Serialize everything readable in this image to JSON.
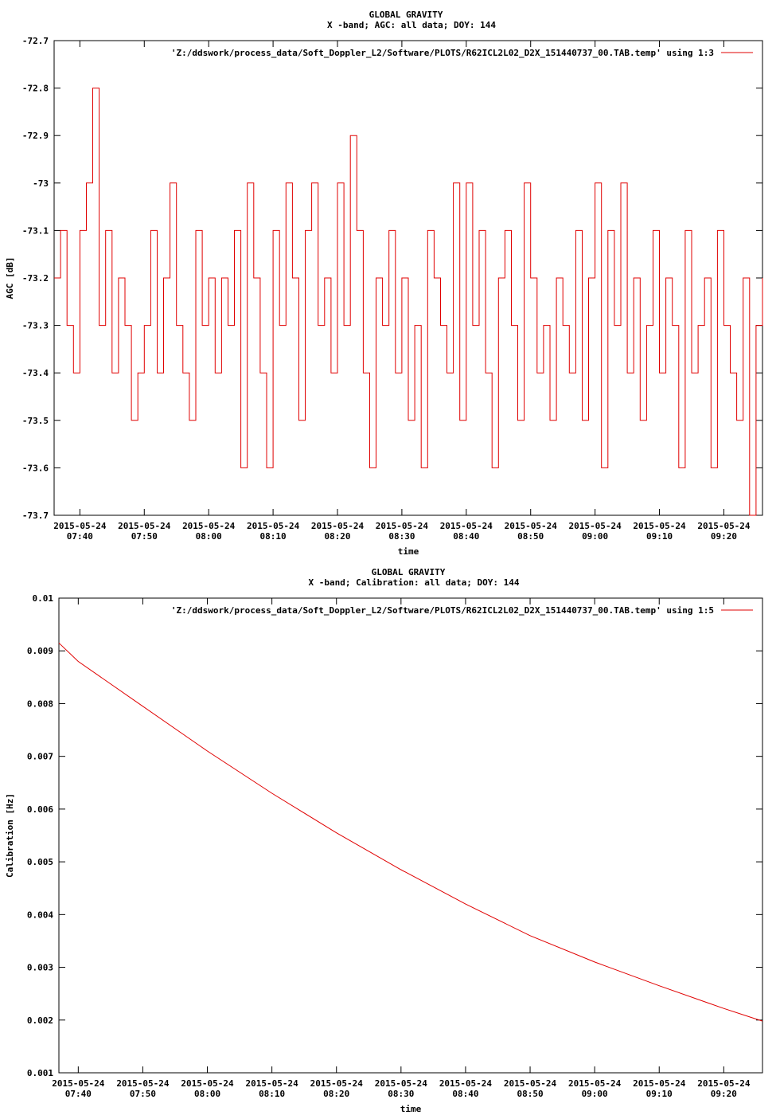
{
  "colors": {
    "series": "#e00000",
    "axis": "#000000",
    "background": "#ffffff"
  },
  "chart_data": [
    {
      "type": "line",
      "title": "GLOBAL GRAVITY",
      "subtitle": "X -band; AGC: all data; DOY: 144",
      "xlabel": "time",
      "ylabel": "AGC [dB]",
      "ylim": [
        -73.7,
        -72.7
      ],
      "xlim": [
        "07:36",
        "09:26"
      ],
      "grid": false,
      "legend_position": "top-right",
      "yticks": [
        {
          "value": -72.7,
          "label": "-72.7"
        },
        {
          "value": -72.8,
          "label": "-72.8"
        },
        {
          "value": -72.9,
          "label": "-72.9"
        },
        {
          "value": -73.0,
          "label": "-73"
        },
        {
          "value": -73.1,
          "label": "-73.1"
        },
        {
          "value": -73.2,
          "label": "-73.2"
        },
        {
          "value": -73.3,
          "label": "-73.3"
        },
        {
          "value": -73.4,
          "label": "-73.4"
        },
        {
          "value": -73.5,
          "label": "-73.5"
        },
        {
          "value": -73.6,
          "label": "-73.6"
        },
        {
          "value": -73.7,
          "label": "-73.7"
        }
      ],
      "xticks": [
        {
          "value": "07:40",
          "date": "2015-05-24",
          "time": "07:40"
        },
        {
          "value": "07:50",
          "date": "2015-05-24",
          "time": "07:50"
        },
        {
          "value": "08:00",
          "date": "2015-05-24",
          "time": "08:00"
        },
        {
          "value": "08:10",
          "date": "2015-05-24",
          "time": "08:10"
        },
        {
          "value": "08:20",
          "date": "2015-05-24",
          "time": "08:20"
        },
        {
          "value": "08:30",
          "date": "2015-05-24",
          "time": "08:30"
        },
        {
          "value": "08:40",
          "date": "2015-05-24",
          "time": "08:40"
        },
        {
          "value": "08:50",
          "date": "2015-05-24",
          "time": "08:50"
        },
        {
          "value": "09:00",
          "date": "2015-05-24",
          "time": "09:00"
        },
        {
          "value": "09:10",
          "date": "2015-05-24",
          "time": "09:10"
        },
        {
          "value": "09:20",
          "date": "2015-05-24",
          "time": "09:20"
        }
      ],
      "series": [
        {
          "name": "'Z:/ddswork/process_data/Soft_Doppler_L2/Software/PLOTS/R62ICL2L02_D2X_151440737_00.TAB.temp' using 1:3",
          "x": [
            "07:36",
            "07:37",
            "07:38",
            "07:39",
            "07:40",
            "07:41",
            "07:42",
            "07:43",
            "07:44",
            "07:45",
            "07:46",
            "07:47",
            "07:48",
            "07:49",
            "07:50",
            "07:51",
            "07:52",
            "07:53",
            "07:54",
            "07:55",
            "07:56",
            "07:57",
            "07:58",
            "07:59",
            "08:00",
            "08:01",
            "08:02",
            "08:03",
            "08:04",
            "08:05",
            "08:06",
            "08:07",
            "08:08",
            "08:09",
            "08:10",
            "08:11",
            "08:12",
            "08:13",
            "08:14",
            "08:15",
            "08:16",
            "08:17",
            "08:18",
            "08:19",
            "08:20",
            "08:21",
            "08:22",
            "08:23",
            "08:24",
            "08:25",
            "08:26",
            "08:27",
            "08:28",
            "08:29",
            "08:30",
            "08:31",
            "08:32",
            "08:33",
            "08:34",
            "08:35",
            "08:36",
            "08:37",
            "08:38",
            "08:39",
            "08:40",
            "08:41",
            "08:42",
            "08:43",
            "08:44",
            "08:45",
            "08:46",
            "08:47",
            "08:48",
            "08:49",
            "08:50",
            "08:51",
            "08:52",
            "08:53",
            "08:54",
            "08:55",
            "08:56",
            "08:57",
            "08:58",
            "08:59",
            "09:00",
            "09:01",
            "09:02",
            "09:03",
            "09:04",
            "09:05",
            "09:06",
            "09:07",
            "09:08",
            "09:09",
            "09:10",
            "09:11",
            "09:12",
            "09:13",
            "09:14",
            "09:15",
            "09:16",
            "09:17",
            "09:18",
            "09:19",
            "09:20",
            "09:21",
            "09:22",
            "09:23",
            "09:24",
            "09:25",
            "09:26"
          ],
          "y": [
            -73.2,
            -73.1,
            -73.3,
            -73.4,
            -73.1,
            -73.0,
            -72.8,
            -73.3,
            -73.1,
            -73.4,
            -73.2,
            -73.3,
            -73.5,
            -73.4,
            -73.3,
            -73.1,
            -73.4,
            -73.2,
            -73.0,
            -73.3,
            -73.4,
            -73.5,
            -73.1,
            -73.3,
            -73.2,
            -73.4,
            -73.2,
            -73.3,
            -73.1,
            -73.6,
            -73.0,
            -73.2,
            -73.4,
            -73.6,
            -73.1,
            -73.3,
            -73.0,
            -73.2,
            -73.5,
            -73.1,
            -73.0,
            -73.3,
            -73.2,
            -73.4,
            -73.0,
            -73.3,
            -72.9,
            -73.1,
            -73.4,
            -73.6,
            -73.2,
            -73.3,
            -73.1,
            -73.4,
            -73.2,
            -73.5,
            -73.3,
            -73.6,
            -73.1,
            -73.2,
            -73.3,
            -73.4,
            -73.0,
            -73.5,
            -73.0,
            -73.3,
            -73.1,
            -73.4,
            -73.6,
            -73.2,
            -73.1,
            -73.3,
            -73.5,
            -73.0,
            -73.2,
            -73.4,
            -73.3,
            -73.5,
            -73.2,
            -73.3,
            -73.4,
            -73.1,
            -73.5,
            -73.2,
            -73.0,
            -73.6,
            -73.1,
            -73.3,
            -73.0,
            -73.4,
            -73.2,
            -73.5,
            -73.3,
            -73.1,
            -73.4,
            -73.2,
            -73.3,
            -73.6,
            -73.1,
            -73.4,
            -73.3,
            -73.2,
            -73.6,
            -73.1,
            -73.3,
            -73.4,
            -73.5,
            -73.2,
            -73.7,
            -73.3,
            -73.2
          ]
        }
      ]
    },
    {
      "type": "line",
      "title": "GLOBAL GRAVITY",
      "subtitle": "X -band; Calibration: all data; DOY: 144",
      "xlabel": "time",
      "ylabel": "Calibration [Hz]",
      "ylim": [
        0.001,
        0.01
      ],
      "xlim": [
        "07:37",
        "09:26"
      ],
      "grid": false,
      "legend_position": "top-right",
      "yticks": [
        {
          "value": 0.01,
          "label": "0.01"
        },
        {
          "value": 0.009,
          "label": "0.009"
        },
        {
          "value": 0.008,
          "label": "0.008"
        },
        {
          "value": 0.007,
          "label": "0.007"
        },
        {
          "value": 0.006,
          "label": "0.006"
        },
        {
          "value": 0.005,
          "label": "0.005"
        },
        {
          "value": 0.004,
          "label": "0.004"
        },
        {
          "value": 0.003,
          "label": "0.003"
        },
        {
          "value": 0.002,
          "label": "0.002"
        },
        {
          "value": 0.001,
          "label": "0.001"
        }
      ],
      "xticks": [
        {
          "value": "07:40",
          "date": "2015-05-24",
          "time": "07:40"
        },
        {
          "value": "07:50",
          "date": "2015-05-24",
          "time": "07:50"
        },
        {
          "value": "08:00",
          "date": "2015-05-24",
          "time": "08:00"
        },
        {
          "value": "08:10",
          "date": "2015-05-24",
          "time": "08:10"
        },
        {
          "value": "08:20",
          "date": "2015-05-24",
          "time": "08:20"
        },
        {
          "value": "08:30",
          "date": "2015-05-24",
          "time": "08:30"
        },
        {
          "value": "08:40",
          "date": "2015-05-24",
          "time": "08:40"
        },
        {
          "value": "08:50",
          "date": "2015-05-24",
          "time": "08:50"
        },
        {
          "value": "09:00",
          "date": "2015-05-24",
          "time": "09:00"
        },
        {
          "value": "09:10",
          "date": "2015-05-24",
          "time": "09:10"
        },
        {
          "value": "09:20",
          "date": "2015-05-24",
          "time": "09:20"
        }
      ],
      "series": [
        {
          "name": "'Z:/ddswork/process_data/Soft_Doppler_L2/Software/PLOTS/R62ICL2L02_D2X_151440737_00.TAB.temp' using 1:5",
          "x": [
            "07:37",
            "07:40",
            "07:50",
            "08:00",
            "08:10",
            "08:20",
            "08:30",
            "08:40",
            "08:50",
            "09:00",
            "09:10",
            "09:20",
            "09:26"
          ],
          "y": [
            0.00915,
            0.0088,
            0.00795,
            0.0071,
            0.0063,
            0.00555,
            0.00485,
            0.0042,
            0.0036,
            0.0031,
            0.00265,
            0.00222,
            0.00198
          ]
        }
      ]
    }
  ]
}
